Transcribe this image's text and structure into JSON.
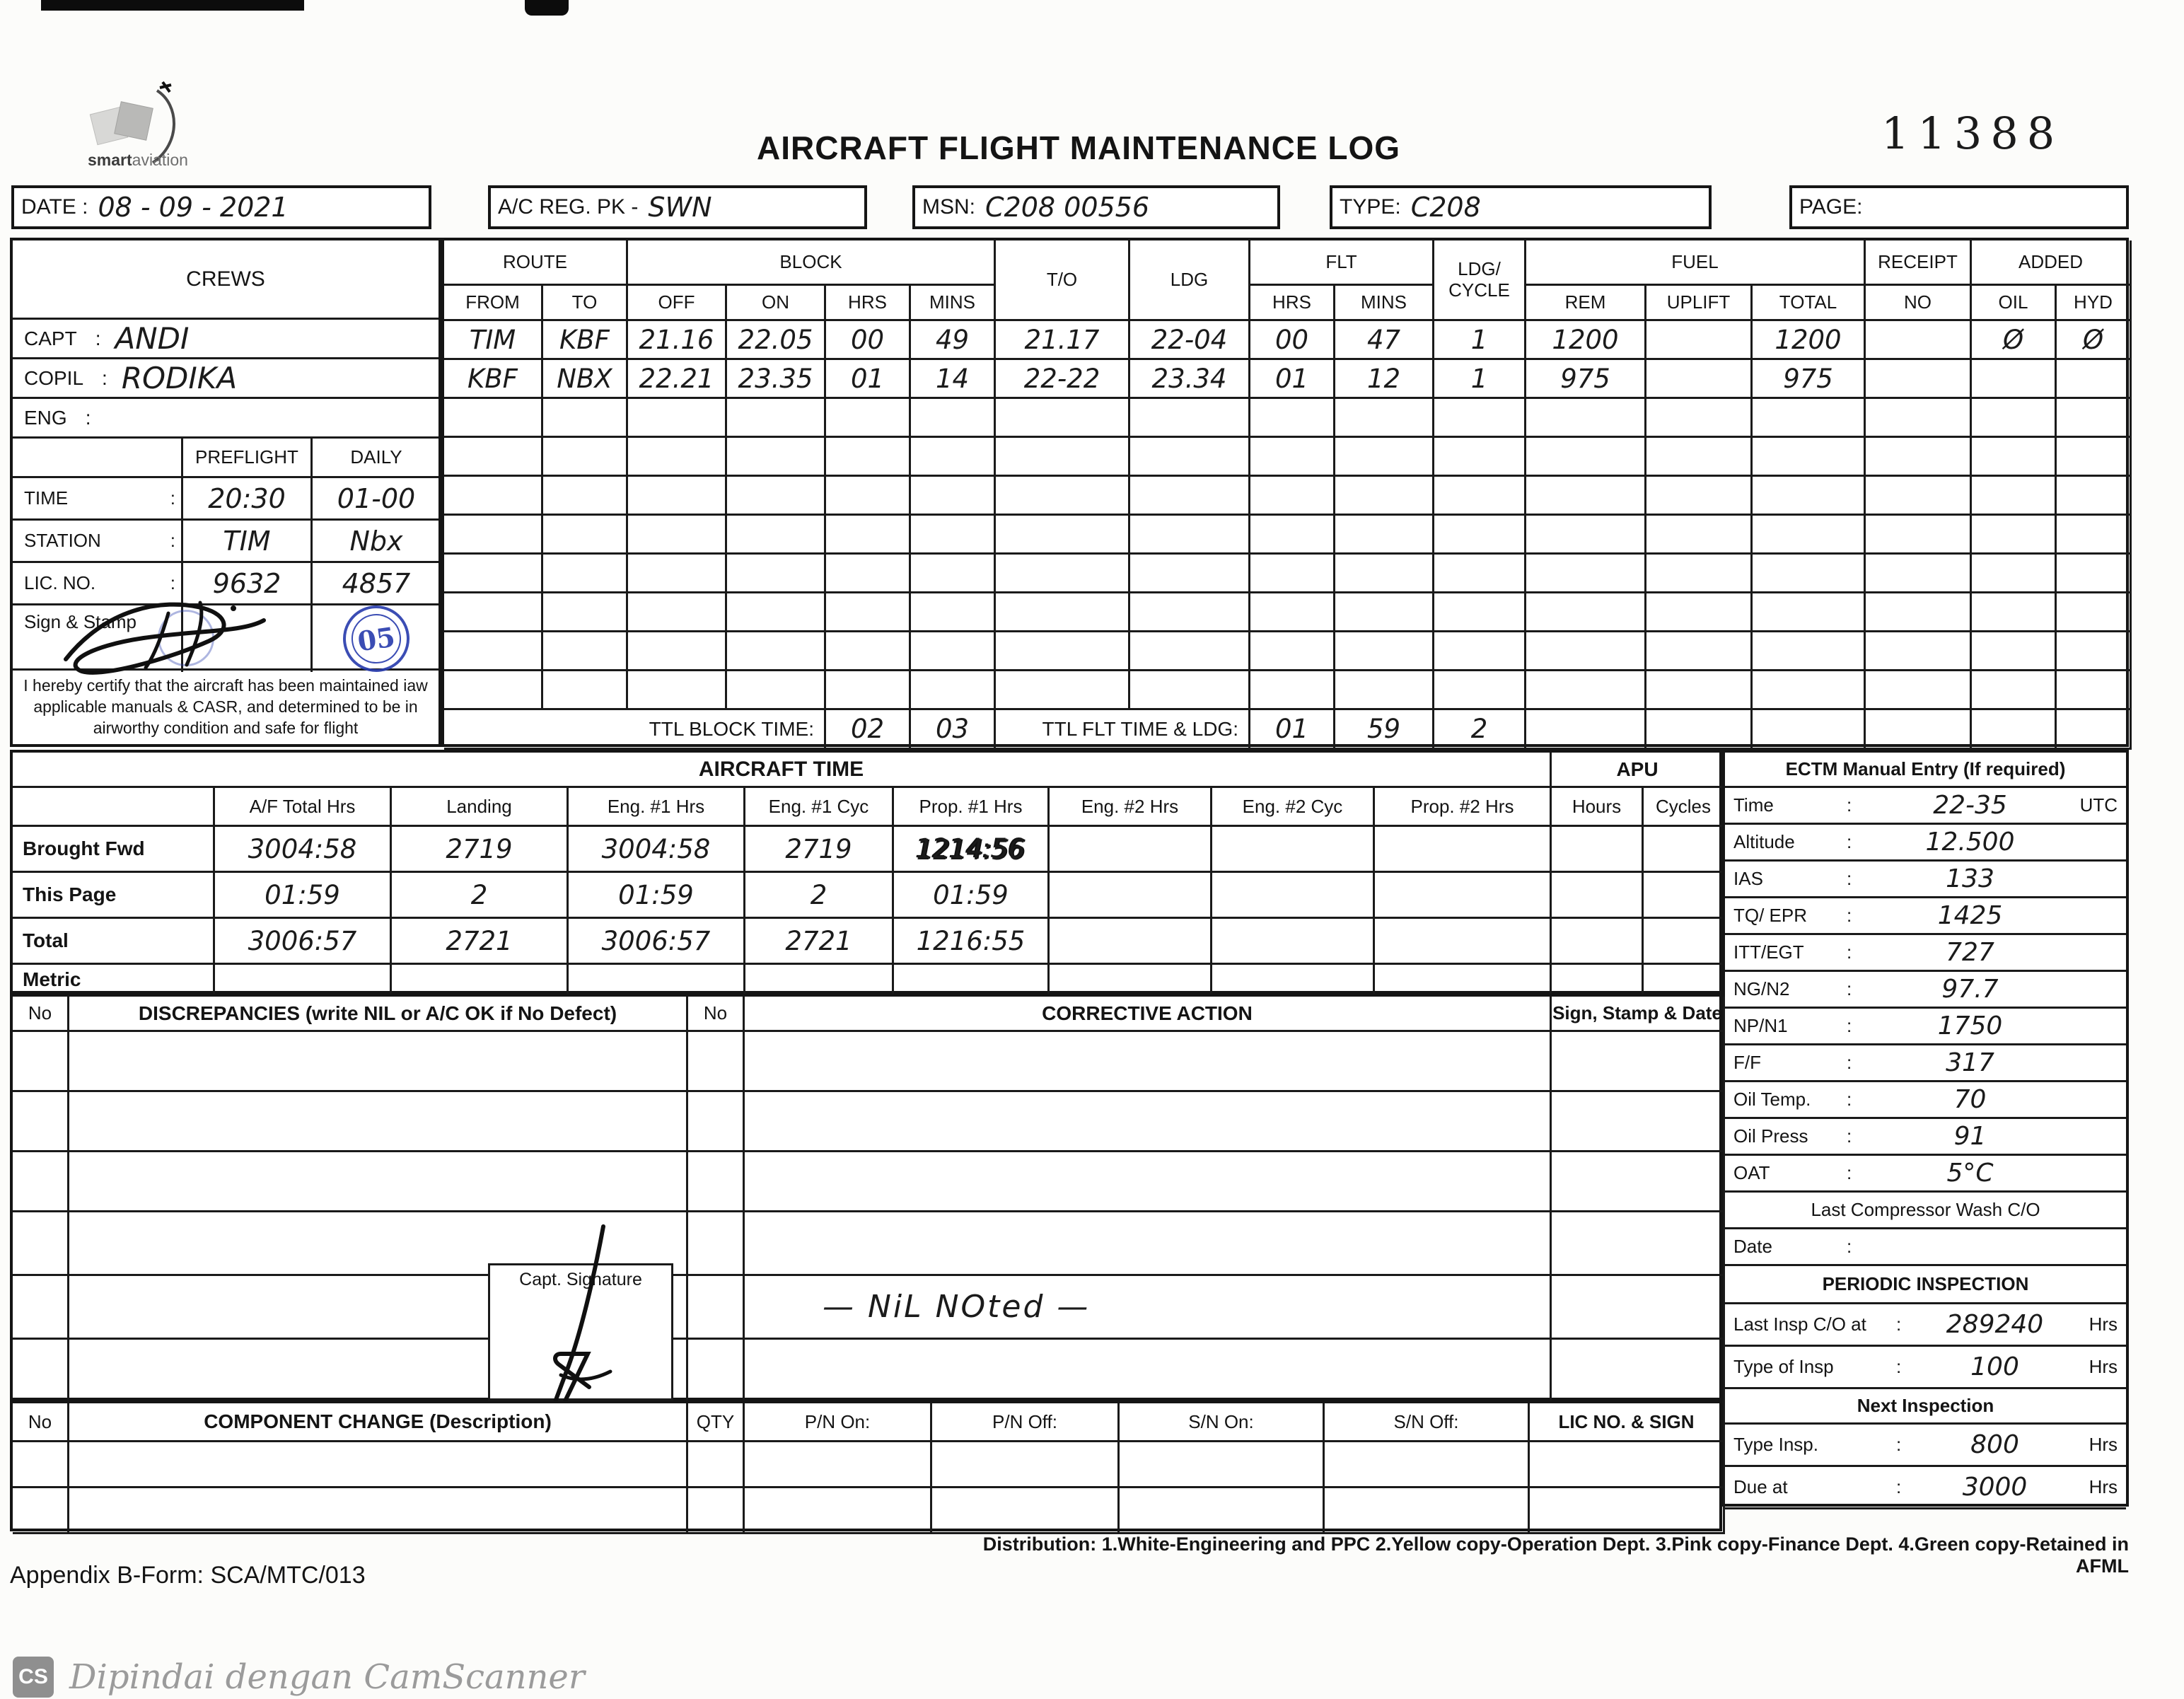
{
  "header": {
    "logo_text_bold": "smart",
    "logo_text_light": "aviation",
    "title": "AIRCRAFT FLIGHT MAINTENANCE LOG",
    "serial": "11388"
  },
  "info_row": {
    "date_label": "DATE :",
    "date_value": "08 - 09 - 2021",
    "reg_label": "A/C REG. PK -",
    "reg_value": "SWN",
    "msn_label": "MSN:",
    "msn_value": "C208 00556",
    "type_label": "TYPE:",
    "type_value": "C208",
    "page_label": "PAGE:",
    "page_value": ""
  },
  "flight_table": {
    "headers": {
      "crews": "CREWS",
      "route": "ROUTE",
      "from": "FROM",
      "to": "TO",
      "block": "BLOCK",
      "off": "OFF",
      "on": "ON",
      "hrs": "HRS",
      "mins": "MINS",
      "t_o": "T/O",
      "ldg": "LDG",
      "flt": "FLT",
      "flt_hrs": "HRS",
      "flt_mins": "MINS",
      "ldg_cycle": "LDG/ CYCLE",
      "fuel": "FUEL",
      "rem": "REM",
      "uplift": "UPLIFT",
      "total": "TOTAL",
      "receipt": "RECEIPT",
      "receipt_no": "NO",
      "added": "ADDED",
      "oil": "OIL",
      "hyd": "HYD"
    },
    "rows": [
      {
        "from": "TIM",
        "to": "KBF",
        "off": "21.16",
        "on": "22.05",
        "hrs": "00",
        "mins": "49",
        "t_o": "21.17",
        "ldg": "22-04",
        "flt_hrs": "00",
        "flt_mins": "47",
        "ldg_cycle": "1",
        "fuel_rem": "1200",
        "fuel_uplift": "",
        "fuel_total": "1200",
        "receipt_no": "",
        "oil": "Ø",
        "hyd": "Ø"
      },
      {
        "from": "KBF",
        "to": "NBX",
        "off": "22.21",
        "on": "23.35",
        "hrs": "01",
        "mins": "14",
        "t_o": "22-22",
        "ldg": "23.34",
        "flt_hrs": "01",
        "flt_mins": "12",
        "ldg_cycle": "1",
        "fuel_rem": "975",
        "fuel_uplift": "",
        "fuel_total": "975",
        "receipt_no": "",
        "oil": "",
        "hyd": ""
      }
    ],
    "empty_rows": 8
  },
  "crews": {
    "capt_label": "CAPT",
    "capt_value": "ANDI",
    "copil_label": "COPIL",
    "copil_value": "RODIKA",
    "eng_label": "ENG",
    "eng_value": "",
    "preflight": "PREFLIGHT",
    "daily": "DAILY",
    "time_label": "TIME",
    "time_preflight": "20:30",
    "time_daily": "01-00",
    "station_label": "STATION",
    "station_preflight": "TIM",
    "station_daily": "Nbx",
    "lic_label": "LIC. NO.",
    "lic_preflight": "9632",
    "lic_daily": "4857",
    "sign_label": "Sign & Stamp",
    "stamp_text": "05",
    "cert_text": "I hereby certify that the aircraft has been maintained iaw applicable manuals & CASR, and determined to be in airworthy condition and safe for flight"
  },
  "ttl": {
    "block_label": "TTL BLOCK TIME:",
    "block_hrs": "02",
    "block_mins": "03",
    "flt_label": "TTL FLT TIME & LDG:",
    "flt_hrs": "01",
    "flt_mins": "59",
    "ldg": "2"
  },
  "aircraft_time": {
    "title": "AIRCRAFT TIME",
    "apu": "APU",
    "col_headers": [
      "A/F Total Hrs",
      "Landing",
      "Eng. #1 Hrs",
      "Eng. #1 Cyc",
      "Prop. #1 Hrs",
      "Eng. #2 Hrs",
      "Eng. #2 Cyc",
      "Prop. #2 Hrs"
    ],
    "apu_headers": [
      "Hours",
      "Cycles"
    ],
    "rows": [
      {
        "label": "Brought Fwd",
        "values": [
          "3004:58",
          "2719",
          "3004:58",
          "2719",
          "1214:56",
          "",
          "",
          ""
        ],
        "scribble": true
      },
      {
        "label": "This Page",
        "values": [
          "01:59",
          "2",
          "01:59",
          "2",
          "01:59",
          "",
          "",
          ""
        ],
        "scribble": false
      },
      {
        "label": "Total",
        "values": [
          "3006:57",
          "2721",
          "3006:57",
          "2721",
          "1216:55",
          "",
          "",
          ""
        ],
        "scribble": false
      },
      {
        "label": "Metric",
        "values": [
          "",
          "",
          "",
          "",
          "",
          "",
          "",
          ""
        ],
        "scribble": false
      }
    ]
  },
  "ectm": {
    "title": "ECTM Manual Entry (If required)",
    "rows": [
      {
        "label": "Time",
        "value": "22-35",
        "suffix": "UTC"
      },
      {
        "label": "Altitude",
        "value": "12.500",
        "suffix": ""
      },
      {
        "label": "IAS",
        "value": "133",
        "suffix": ""
      },
      {
        "label": "TQ/ EPR",
        "value": "1425",
        "suffix": ""
      },
      {
        "label": "ITT/EGT",
        "value": "727",
        "suffix": ""
      },
      {
        "label": "NG/N2",
        "value": "97.7",
        "suffix": ""
      },
      {
        "label": "NP/N1",
        "value": "1750",
        "suffix": ""
      },
      {
        "label": "F/F",
        "value": "317",
        "suffix": ""
      },
      {
        "label": "Oil Temp.",
        "value": "70",
        "suffix": ""
      },
      {
        "label": "Oil Press",
        "value": "91",
        "suffix": ""
      },
      {
        "label": "OAT",
        "value": "5°C",
        "suffix": ""
      }
    ],
    "wash_title": "Last Compressor Wash C/O",
    "date_label": "Date",
    "date_value": "",
    "periodic_title": "PERIODIC INSPECTION",
    "periodic_rows": [
      {
        "label": "Last Insp C/O at",
        "value": "289240",
        "suffix": "Hrs"
      },
      {
        "label": "Type of Insp",
        "value": "100",
        "suffix": "Hrs"
      }
    ],
    "next_title": "Next Inspection",
    "next_rows": [
      {
        "label": "Type Insp.",
        "value": "800",
        "suffix": "Hrs"
      },
      {
        "label": "Due at",
        "value": "3000",
        "suffix": "Hrs"
      }
    ]
  },
  "discrepancies": {
    "no_label": "No",
    "disc_header": "DISCREPANCIES (write NIL or A/C OK if No Defect)",
    "no2_label": "No",
    "corrective_header": "CORRECTIVE ACTION",
    "sign_header": "Sign, Stamp & Date",
    "nil_note": "— NiL NOted —",
    "capt_sig_label": "Capt. Signature",
    "row_count": 6
  },
  "component": {
    "no_label": "No",
    "desc_header": "COMPONENT CHANGE (Description)",
    "qty": "QTY",
    "pn_on": "P/N On:",
    "pn_off": "P/N Off:",
    "sn_on": "S/N On:",
    "sn_off": "S/N Off:",
    "lic": "LIC NO. & SIGN",
    "row_count": 2
  },
  "footer": {
    "appendix": "Appendix B-Form: SCA/MTC/013",
    "distribution": "Distribution: 1.White-Engineering and PPC  2.Yellow copy-Operation Dept.  3.Pink copy-Finance Dept.  4.Green copy-Retained in AFML"
  },
  "watermark": {
    "cs": "CS",
    "text": "Dipindai dengan CamScanner"
  },
  "colors": {
    "ink": "#141414",
    "stamp_blue": "#2b3eae",
    "paper": "#fcfcfa",
    "watermark_gray": "#9b9b9b"
  }
}
